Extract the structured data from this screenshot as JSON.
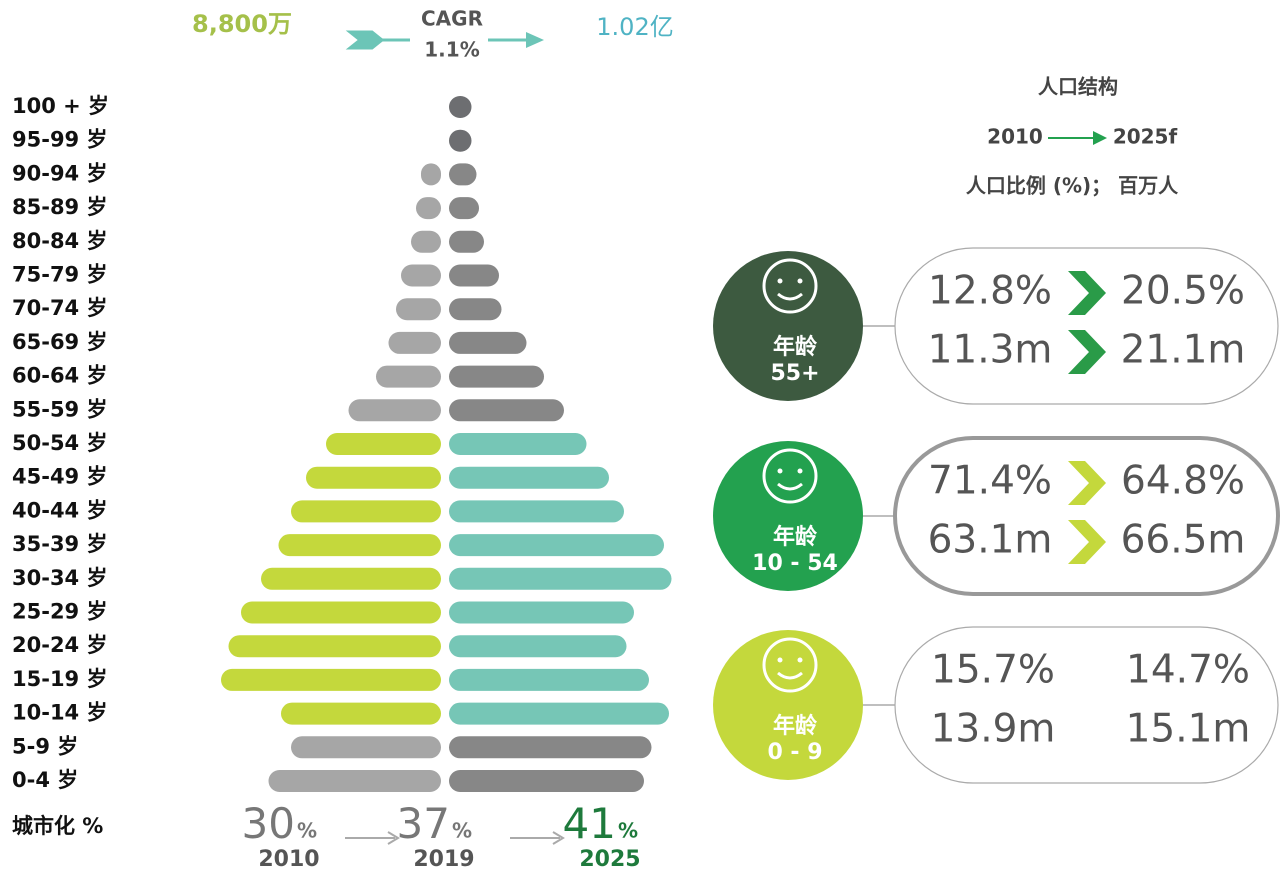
{
  "header": {
    "start": "8,800万",
    "cagr_label": "CAGR",
    "cagr": "1.1%",
    "end": "1.02亿"
  },
  "chart_data": {
    "type": "pyramid",
    "categories": [
      "100 + 岁",
      "95-99 岁",
      "90-94 岁",
      "85-89 岁",
      "80-84 岁",
      "75-79 岁",
      "70-74 岁",
      "65-69 岁",
      "60-64 岁",
      "55-59 岁",
      "50-54 岁",
      "45-49 岁",
      "40-44 岁",
      "35-39 岁",
      "30-34 岁",
      "25-29 岁",
      "20-24 岁",
      "15-19 岁",
      "10-14 岁",
      "5-9 岁",
      "0-4 岁"
    ],
    "series": [
      {
        "side": "left",
        "values": [
          0,
          0,
          0.8,
          1.0,
          1.2,
          1.6,
          1.8,
          2.1,
          2.6,
          3.7,
          4.6,
          5.4,
          6.0,
          6.5,
          7.2,
          8.0,
          8.5,
          8.8,
          6.4,
          6.0,
          6.9
        ],
        "colors": [
          "#a6a6a6",
          "#a6a6a6",
          "#a6a6a6",
          "#a6a6a6",
          "#a6a6a6",
          "#a6a6a6",
          "#a6a6a6",
          "#a6a6a6",
          "#a6a6a6",
          "#a6a6a6",
          "#c4d83c",
          "#c4d83c",
          "#c4d83c",
          "#c4d83c",
          "#c4d83c",
          "#c4d83c",
          "#c4d83c",
          "#c4d83c",
          "#c4d83c",
          "#a6a6a6",
          "#a6a6a6"
        ]
      },
      {
        "side": "right",
        "values": [
          0.9,
          0.9,
          1.1,
          1.2,
          1.4,
          2.0,
          2.1,
          3.1,
          3.8,
          4.6,
          5.5,
          6.4,
          7.0,
          8.6,
          8.9,
          7.4,
          7.1,
          8.0,
          8.8,
          8.1,
          7.8
        ],
        "colors": [
          "#6d6e71",
          "#6d6e71",
          "#878787",
          "#878787",
          "#878787",
          "#878787",
          "#878787",
          "#878787",
          "#878787",
          "#878787",
          "#76c6b6",
          "#76c6b6",
          "#76c6b6",
          "#76c6b6",
          "#76c6b6",
          "#76c6b6",
          "#76c6b6",
          "#76c6b6",
          "#76c6b6",
          "#878787",
          "#878787"
        ]
      }
    ]
  },
  "urbanization": {
    "label": "城市化 %",
    "items": [
      {
        "value": 30,
        "unit": "%",
        "year": "2010"
      },
      {
        "value": 37,
        "unit": "%",
        "year": "2019"
      },
      {
        "value": 41,
        "unit": "%",
        "year": "2025"
      }
    ]
  },
  "structure": {
    "title": "人口结构",
    "from": "2010",
    "to": "2025f",
    "subtitle": "人口比例 (%)； 百万人",
    "groups": [
      {
        "age_label": "年龄",
        "age_range": "55+",
        "share_from": "12.8%",
        "share_to": "20.5%",
        "pop_from": "11.3m",
        "pop_to": "21.1m"
      },
      {
        "age_label": "年龄",
        "age_range": "10 - 54",
        "share_from": "71.4%",
        "share_to": "64.8%",
        "pop_from": "63.1m",
        "pop_to": "66.5m"
      },
      {
        "age_label": "年龄",
        "age_range": "0 - 9",
        "share_from": "15.7%",
        "share_to": "14.7%",
        "pop_from": "13.9m",
        "pop_to": "15.1m"
      }
    ]
  }
}
